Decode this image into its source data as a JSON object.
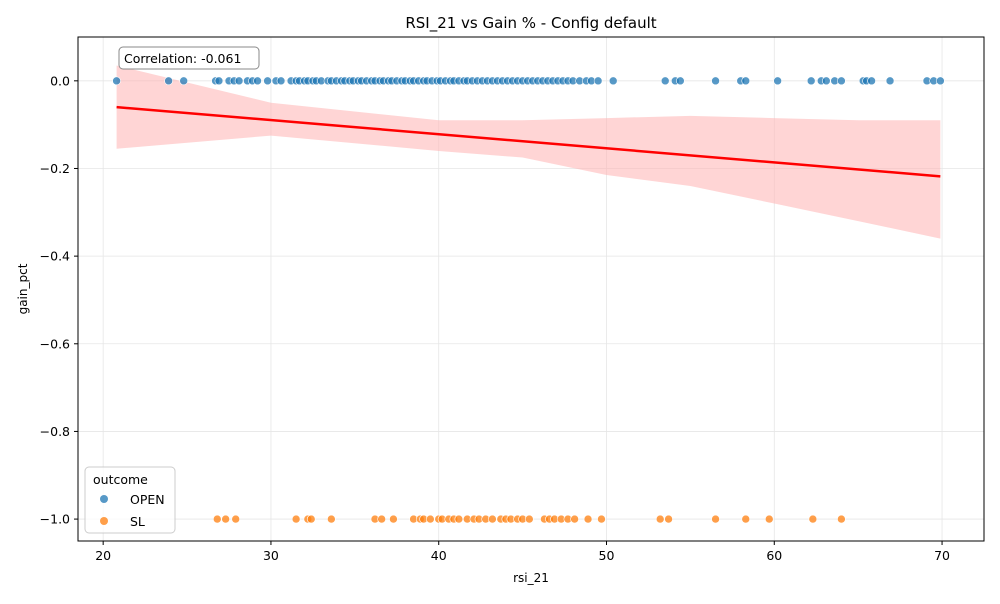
{
  "chart_data": {
    "type": "scatter",
    "title": "RSI_21 vs Gain % - Config default",
    "xlabel": "rsi_21",
    "ylabel": "gain_pct",
    "xlim": [
      18.5,
      72.5
    ],
    "ylim": [
      -1.05,
      0.1
    ],
    "xticks": [
      20,
      30,
      40,
      50,
      60,
      70
    ],
    "yticks": [
      0.0,
      -0.2,
      -0.4,
      -0.6,
      -0.8,
      -1.0
    ],
    "grid": true,
    "legend": {
      "title": "outcome",
      "placement": "lower-left",
      "entries": [
        "OPEN",
        "SL"
      ]
    },
    "annotation": "Correlation: -0.061",
    "regression": {
      "x": [
        20.8,
        69.9
      ],
      "y": [
        -0.06,
        -0.218
      ],
      "ci_color": "#ffb3b3",
      "line_color": "#ff0000",
      "ci_band": [
        {
          "x": 20.8,
          "lo": -0.155,
          "hi": 0.035
        },
        {
          "x": 30,
          "lo": -0.125,
          "hi": -0.05
        },
        {
          "x": 40,
          "lo": -0.16,
          "hi": -0.09
        },
        {
          "x": 45,
          "lo": -0.175,
          "hi": -0.09
        },
        {
          "x": 50,
          "lo": -0.215,
          "hi": -0.085
        },
        {
          "x": 55,
          "lo": -0.24,
          "hi": -0.08
        },
        {
          "x": 60,
          "lo": -0.28,
          "hi": -0.085
        },
        {
          "x": 65,
          "lo": -0.32,
          "hi": -0.09
        },
        {
          "x": 69.9,
          "lo": -0.36,
          "hi": -0.09
        }
      ]
    },
    "series": [
      {
        "name": "OPEN",
        "color": "#1f77b4",
        "y": 0.0,
        "x": [
          20.8,
          23.9,
          24.8,
          26.7,
          26.9,
          27.5,
          27.8,
          28.1,
          28.6,
          28.9,
          29.2,
          29.8,
          30.3,
          30.6,
          31.2,
          31.5,
          31.7,
          32.0,
          32.2,
          32.5,
          32.7,
          33.0,
          33.4,
          33.6,
          33.9,
          34.2,
          34.4,
          34.7,
          34.9,
          35.2,
          35.4,
          35.7,
          36.0,
          36.2,
          36.5,
          36.7,
          37.0,
          37.2,
          37.5,
          37.8,
          38.0,
          38.3,
          38.5,
          38.8,
          39.1,
          39.3,
          39.6,
          39.9,
          40.1,
          40.4,
          40.7,
          40.9,
          41.2,
          41.5,
          41.7,
          42.0,
          42.3,
          42.6,
          42.9,
          43.2,
          43.5,
          43.8,
          44.1,
          44.4,
          44.7,
          45.0,
          45.3,
          45.6,
          45.9,
          46.2,
          46.5,
          46.8,
          47.1,
          47.4,
          47.7,
          48.0,
          48.4,
          48.8,
          49.1,
          49.5,
          50.4,
          53.5,
          54.1,
          54.4,
          56.5,
          58.0,
          58.3,
          60.2,
          62.2,
          62.8,
          63.1,
          63.6,
          64.0,
          65.3,
          65.5,
          65.8,
          66.9,
          69.1,
          69.5,
          69.9
        ]
      },
      {
        "name": "SL",
        "color": "#ff7f0e",
        "y": -1.0,
        "x": [
          26.8,
          27.3,
          27.9,
          31.5,
          32.2,
          32.4,
          33.6,
          36.2,
          36.6,
          37.3,
          38.5,
          38.9,
          39.1,
          39.5,
          40.0,
          40.2,
          40.6,
          40.9,
          41.2,
          41.7,
          42.1,
          42.4,
          42.8,
          43.2,
          43.7,
          44.0,
          44.3,
          44.7,
          45.0,
          45.4,
          46.3,
          46.6,
          46.9,
          47.3,
          47.7,
          48.1,
          48.9,
          49.7,
          53.2,
          53.7,
          56.5,
          58.3,
          59.7,
          62.3,
          64.0
        ]
      }
    ]
  }
}
